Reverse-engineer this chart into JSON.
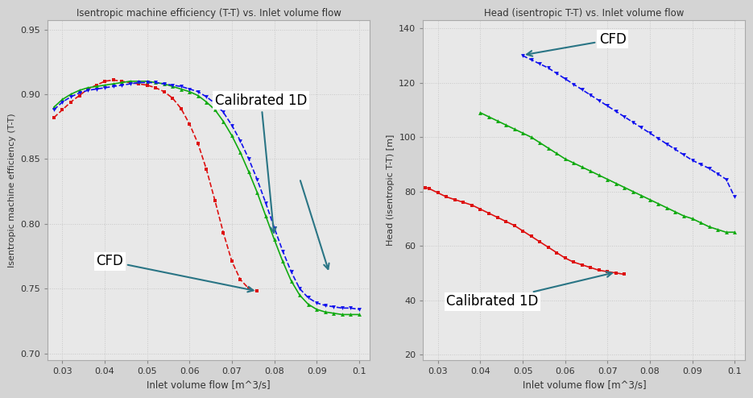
{
  "left_title": "Isentropic machine efficiency (T-T) vs. Inlet volume flow",
  "right_title": "Head (isentropic T-T) vs. Inlet volume flow",
  "left_xlabel": "Inlet volume flow [m^3/s]",
  "right_xlabel": "Inlet volume flow [m^3/s]",
  "left_ylabel": "Isentropic machine efficiency (T-T)",
  "right_ylabel": "Head (isentropic T-T) [m]",
  "left_ylim": [
    0.695,
    0.957
  ],
  "right_ylim": [
    18,
    143
  ],
  "xlim": [
    0.0265,
    0.1025
  ],
  "left_yticks": [
    0.7,
    0.75,
    0.8,
    0.85,
    0.9,
    0.95
  ],
  "right_yticks": [
    20,
    40,
    60,
    80,
    100,
    120,
    140
  ],
  "xticks": [
    0.03,
    0.04,
    0.05,
    0.06,
    0.07,
    0.08,
    0.09,
    0.1
  ],
  "bg_color": "#d4d4d4",
  "plot_bg_color": "#e8e8e8",
  "grid_color": "#c8c8c8",
  "red": "#dd1111",
  "green": "#11aa11",
  "blue": "#1111ee",
  "arrow_color": "#2a7585",
  "left_red_x": [
    0.028,
    0.03,
    0.032,
    0.034,
    0.036,
    0.038,
    0.04,
    0.042,
    0.044,
    0.046,
    0.048,
    0.05,
    0.052,
    0.054,
    0.056,
    0.058,
    0.06,
    0.062,
    0.064,
    0.066,
    0.068,
    0.07,
    0.072,
    0.074,
    0.076
  ],
  "left_red_y": [
    0.882,
    0.888,
    0.894,
    0.899,
    0.904,
    0.907,
    0.91,
    0.911,
    0.91,
    0.909,
    0.908,
    0.907,
    0.905,
    0.902,
    0.897,
    0.889,
    0.877,
    0.862,
    0.842,
    0.818,
    0.793,
    0.771,
    0.757,
    0.75,
    0.748
  ],
  "left_green_x": [
    0.028,
    0.03,
    0.032,
    0.034,
    0.036,
    0.038,
    0.04,
    0.042,
    0.044,
    0.046,
    0.048,
    0.05,
    0.052,
    0.054,
    0.056,
    0.058,
    0.06,
    0.062,
    0.064,
    0.066,
    0.068,
    0.07,
    0.072,
    0.074,
    0.076,
    0.078,
    0.08,
    0.082,
    0.084,
    0.086,
    0.088,
    0.09,
    0.092,
    0.094,
    0.096,
    0.098,
    0.1
  ],
  "left_green_y": [
    0.89,
    0.896,
    0.9,
    0.903,
    0.905,
    0.906,
    0.907,
    0.908,
    0.909,
    0.91,
    0.91,
    0.91,
    0.909,
    0.908,
    0.906,
    0.904,
    0.902,
    0.899,
    0.894,
    0.888,
    0.879,
    0.868,
    0.855,
    0.84,
    0.824,
    0.806,
    0.788,
    0.771,
    0.756,
    0.745,
    0.738,
    0.734,
    0.732,
    0.731,
    0.73,
    0.73,
    0.73
  ],
  "left_blue_x": [
    0.028,
    0.03,
    0.032,
    0.034,
    0.036,
    0.038,
    0.04,
    0.042,
    0.044,
    0.046,
    0.048,
    0.05,
    0.052,
    0.054,
    0.056,
    0.058,
    0.06,
    0.062,
    0.064,
    0.066,
    0.068,
    0.07,
    0.072,
    0.074,
    0.076,
    0.078,
    0.08,
    0.082,
    0.084,
    0.086,
    0.088,
    0.09,
    0.092,
    0.094,
    0.096,
    0.098,
    0.1
  ],
  "left_blue_y": [
    0.888,
    0.894,
    0.898,
    0.901,
    0.903,
    0.904,
    0.905,
    0.906,
    0.907,
    0.908,
    0.909,
    0.909,
    0.909,
    0.908,
    0.907,
    0.906,
    0.904,
    0.902,
    0.898,
    0.893,
    0.886,
    0.876,
    0.864,
    0.85,
    0.834,
    0.816,
    0.797,
    0.779,
    0.763,
    0.75,
    0.743,
    0.739,
    0.737,
    0.736,
    0.735,
    0.735,
    0.734
  ],
  "right_red_x": [
    0.027,
    0.028,
    0.03,
    0.032,
    0.034,
    0.036,
    0.038,
    0.04,
    0.042,
    0.044,
    0.046,
    0.048,
    0.05,
    0.052,
    0.054,
    0.056,
    0.058,
    0.06,
    0.062,
    0.064,
    0.066,
    0.068,
    0.07,
    0.072,
    0.074
  ],
  "right_red_y": [
    81.5,
    81.0,
    79.5,
    78.0,
    77.0,
    76.0,
    75.0,
    73.5,
    72.0,
    70.5,
    69.0,
    67.5,
    65.5,
    63.5,
    61.5,
    59.5,
    57.5,
    55.5,
    54.0,
    53.0,
    52.0,
    51.0,
    50.5,
    50.0,
    49.5
  ],
  "right_green_x": [
    0.04,
    0.042,
    0.044,
    0.046,
    0.048,
    0.05,
    0.052,
    0.054,
    0.056,
    0.058,
    0.06,
    0.062,
    0.064,
    0.066,
    0.068,
    0.07,
    0.072,
    0.074,
    0.076,
    0.078,
    0.08,
    0.082,
    0.084,
    0.086,
    0.088,
    0.09,
    0.092,
    0.094,
    0.096,
    0.098,
    0.1
  ],
  "right_green_y": [
    109.0,
    107.5,
    106.0,
    104.5,
    103.0,
    101.5,
    100.0,
    98.0,
    96.0,
    94.0,
    92.0,
    90.5,
    89.0,
    87.5,
    86.0,
    84.5,
    83.0,
    81.5,
    80.0,
    78.5,
    77.0,
    75.5,
    74.0,
    72.5,
    71.0,
    70.0,
    68.5,
    67.0,
    66.0,
    65.0,
    65.0
  ],
  "right_blue_x": [
    0.05,
    0.052,
    0.054,
    0.056,
    0.058,
    0.06,
    0.062,
    0.064,
    0.066,
    0.068,
    0.07,
    0.072,
    0.074,
    0.076,
    0.078,
    0.08,
    0.082,
    0.084,
    0.086,
    0.088,
    0.09,
    0.092,
    0.094,
    0.096,
    0.098,
    0.1
  ],
  "right_blue_y": [
    130.0,
    128.5,
    127.0,
    125.5,
    123.5,
    121.5,
    119.5,
    117.5,
    115.5,
    113.5,
    111.5,
    109.5,
    107.5,
    105.5,
    103.5,
    101.5,
    99.5,
    97.5,
    95.5,
    93.5,
    91.5,
    90.0,
    88.5,
    86.5,
    84.5,
    78.0
  ]
}
